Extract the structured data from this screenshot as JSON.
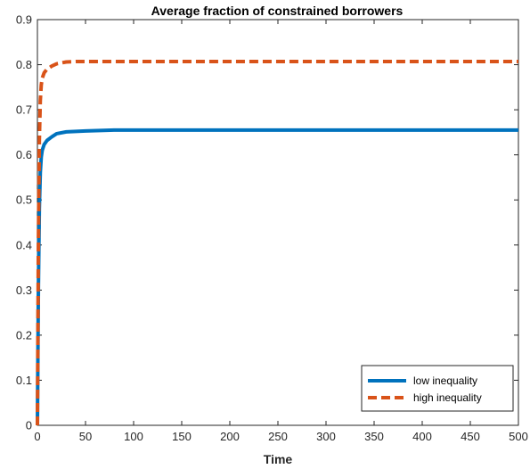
{
  "chart_data": {
    "type": "line",
    "title": "Average fraction of constrained borrowers",
    "xlabel": "Time",
    "ylabel": "",
    "xlim": [
      0,
      500
    ],
    "ylim": [
      0,
      0.9
    ],
    "x_ticks": [
      0,
      50,
      100,
      150,
      200,
      250,
      300,
      350,
      400,
      450,
      500
    ],
    "x_tick_labels": [
      "0",
      "50",
      "100",
      "150",
      "200",
      "250",
      "300",
      "350",
      "400",
      "450",
      "500"
    ],
    "y_ticks": [
      0,
      0.1,
      0.2,
      0.3,
      0.4,
      0.5,
      0.6,
      0.7,
      0.8,
      0.9
    ],
    "y_tick_labels": [
      "0",
      "0.1",
      "0.2",
      "0.3",
      "0.4",
      "0.5",
      "0.6",
      "0.7",
      "0.8",
      "0.9"
    ],
    "grid": false,
    "legend_position": "bottom-right",
    "series": [
      {
        "name": "low inequality",
        "color": "#0072BD",
        "style": "solid",
        "x": [
          0,
          1,
          2,
          3,
          4,
          5,
          7,
          10,
          15,
          20,
          30,
          50,
          80,
          100,
          150,
          200,
          300,
          400,
          500
        ],
        "y": [
          0,
          0.3,
          0.48,
          0.56,
          0.595,
          0.61,
          0.623,
          0.632,
          0.64,
          0.647,
          0.651,
          0.653,
          0.655,
          0.655,
          0.655,
          0.655,
          0.655,
          0.655,
          0.655
        ]
      },
      {
        "name": "high inequality",
        "color": "#D95319",
        "style": "dashed",
        "x": [
          0,
          1,
          2,
          3,
          4,
          5,
          7,
          10,
          15,
          20,
          30,
          40,
          60,
          100,
          200,
          300,
          400,
          500
        ],
        "y": [
          0,
          0.4,
          0.63,
          0.72,
          0.755,
          0.77,
          0.782,
          0.79,
          0.797,
          0.802,
          0.806,
          0.807,
          0.807,
          0.807,
          0.807,
          0.807,
          0.807,
          0.807
        ]
      }
    ]
  }
}
